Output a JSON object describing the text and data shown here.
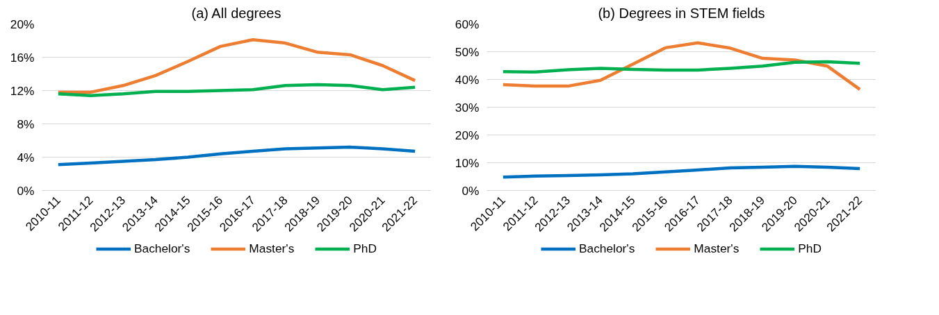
{
  "chart_data": [
    {
      "type": "line",
      "title": "(a) All degrees",
      "categories": [
        "2010-11",
        "2011-12",
        "2012-13",
        "2013-14",
        "2014-15",
        "2015-16",
        "2016-17",
        "2017-18",
        "2018-19",
        "2019-20",
        "2020-21",
        "2021-22"
      ],
      "ylim": [
        0,
        20
      ],
      "yticks": [
        {
          "value": 0,
          "label": "0%"
        },
        {
          "value": 4,
          "label": "4%"
        },
        {
          "value": 8,
          "label": "8%"
        },
        {
          "value": 12,
          "label": "12%"
        },
        {
          "value": 16,
          "label": "16%"
        },
        {
          "value": 20,
          "label": "20%"
        }
      ],
      "grid": "y",
      "legend": "bottom",
      "line_style": "solid",
      "series": [
        {
          "name": "Bachelor's",
          "color": "#0070c0",
          "values": [
            3.1,
            3.3,
            3.5,
            3.7,
            4.0,
            4.4,
            4.7,
            5.0,
            5.1,
            5.2,
            5.0,
            4.7
          ]
        },
        {
          "name": "Master's",
          "color": "#ed7d31",
          "values": [
            11.8,
            11.8,
            12.6,
            13.8,
            15.5,
            17.3,
            18.1,
            17.7,
            16.6,
            16.3,
            15.0,
            13.2
          ]
        },
        {
          "name": "PhD",
          "color": "#00b050",
          "values": [
            11.6,
            11.4,
            11.6,
            11.9,
            11.9,
            12.0,
            12.1,
            12.6,
            12.7,
            12.6,
            12.1,
            12.4
          ]
        }
      ]
    },
    {
      "type": "line",
      "title": "(b) Degrees in STEM fields",
      "categories": [
        "2010-11",
        "2011-12",
        "2012-13",
        "2013-14",
        "2014-15",
        "2015-16",
        "2016-17",
        "2017-18",
        "2018-19",
        "2019-20",
        "2020-21",
        "2021-22"
      ],
      "ylim": [
        0,
        60
      ],
      "yticks": [
        {
          "value": 0,
          "label": "0%"
        },
        {
          "value": 10,
          "label": "10%"
        },
        {
          "value": 20,
          "label": "20%"
        },
        {
          "value": 30,
          "label": "30%"
        },
        {
          "value": 40,
          "label": "40%"
        },
        {
          "value": 50,
          "label": "50%"
        },
        {
          "value": 60,
          "label": "60%"
        }
      ],
      "grid": "y",
      "legend": "bottom",
      "line_style": "solid",
      "series": [
        {
          "name": "Bachelor's",
          "color": "#0070c0",
          "values": [
            4.8,
            5.2,
            5.4,
            5.6,
            6.0,
            6.7,
            7.4,
            8.1,
            8.4,
            8.7,
            8.4,
            7.9
          ]
        },
        {
          "name": "Master's",
          "color": "#ed7d31",
          "values": [
            38.1,
            37.6,
            37.6,
            39.7,
            45.5,
            51.4,
            53.2,
            51.3,
            47.6,
            47.0,
            44.8,
            36.4
          ]
        },
        {
          "name": "PhD",
          "color": "#00b050",
          "values": [
            42.8,
            42.7,
            43.5,
            44.0,
            43.6,
            43.4,
            43.4,
            44.0,
            44.8,
            46.2,
            46.4,
            45.8
          ]
        }
      ]
    }
  ]
}
